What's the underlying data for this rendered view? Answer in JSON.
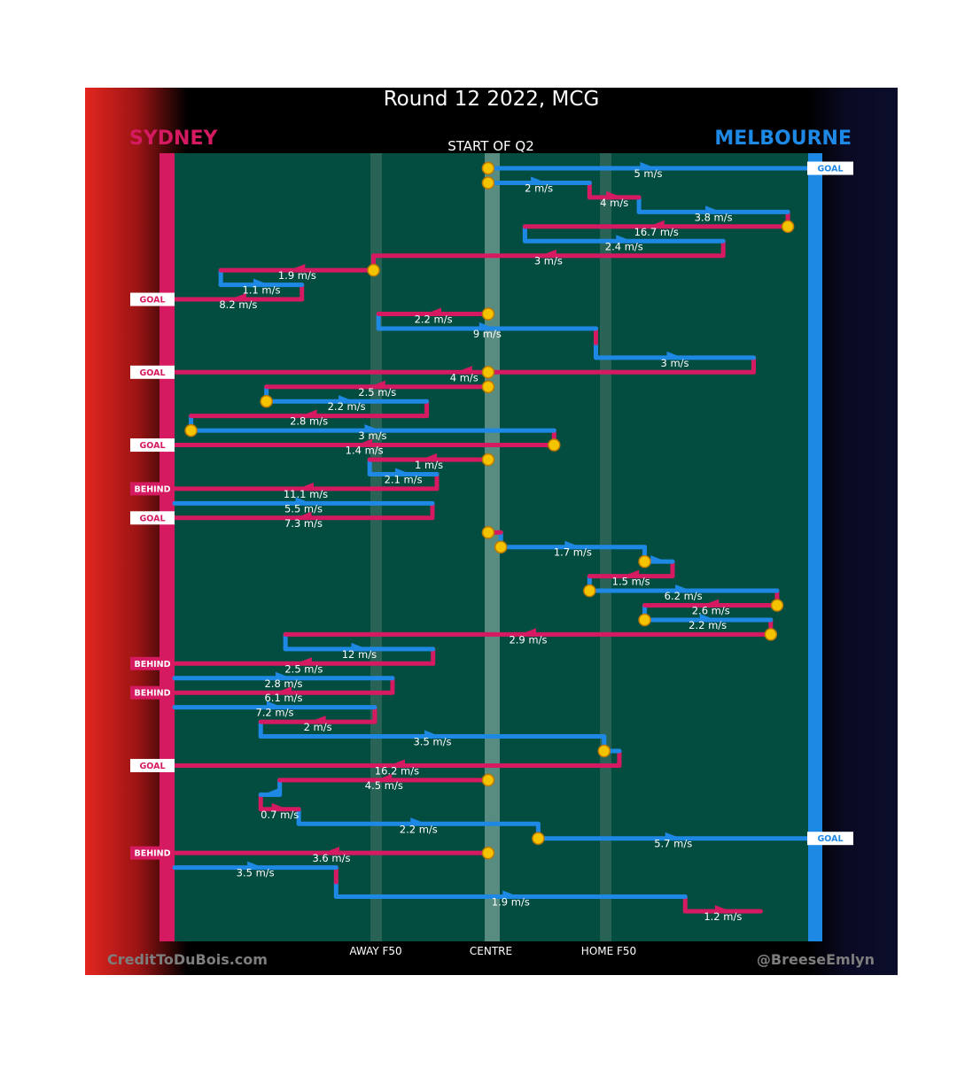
{
  "title": "Round 12 2022, MCG",
  "subtitle": "START OF Q2",
  "teams": {
    "left": "SYDNEY",
    "right": "MELBOURNE"
  },
  "footer": {
    "credit": "CreditToDuBois.com",
    "handle": "@BreeseEmlyn"
  },
  "colors": {
    "sydney": "#d61a61",
    "melbourne": "#1e88e5",
    "ground": "#034d40",
    "marker": "#f5c400"
  },
  "chart_data": {
    "type": "line",
    "xlabel": "",
    "ylabel": "",
    "x_markers": [
      {
        "label": "AWAY F50",
        "x": 50
      },
      {
        "label": "CENTRE",
        "x": 50
      },
      {
        "label": "HOME F50",
        "x": 50
      }
    ],
    "xlim": [
      0,
      100
    ],
    "note_units": "x values are percent of ground length from Sydney goal (0) to Melbourne goal (100)",
    "series": [
      {
        "name": "SYDNEY"
      },
      {
        "name": "MELBOURNE"
      }
    ],
    "segments": [
      {
        "team": "MELBOURNE",
        "from": 49.5,
        "to": 100,
        "y": 1,
        "speed": "5 m/s",
        "result": "GOAL"
      },
      {
        "team": "MELBOURNE",
        "from": 49.5,
        "to": 65.5,
        "y": 2,
        "speed": "2 m/s"
      },
      {
        "team": "SYDNEY",
        "from": 65.5,
        "to": 73.3,
        "y": 3,
        "speed": "4 m/s"
      },
      {
        "team": "MELBOURNE",
        "from": 73.3,
        "to": 96.8,
        "y": 4,
        "speed": "3.8 m/s"
      },
      {
        "team": "SYDNEY",
        "from": 96.8,
        "to": 55.3,
        "y": 5,
        "speed": "16.7 m/s"
      },
      {
        "team": "MELBOURNE",
        "from": 55.3,
        "to": 86.6,
        "y": 6,
        "speed": "2.4 m/s"
      },
      {
        "team": "SYDNEY",
        "from": 86.6,
        "to": 31.4,
        "y": 7,
        "speed": "3 m/s"
      },
      {
        "team": "SYDNEY",
        "from": 31.4,
        "to": 7.3,
        "y": 8,
        "speed": "1.9 m/s"
      },
      {
        "team": "MELBOURNE",
        "from": 7.3,
        "to": 20.1,
        "y": 9,
        "speed": "1.1 m/s"
      },
      {
        "team": "SYDNEY",
        "from": 20.1,
        "to": 0,
        "y": 10,
        "speed": "8.2 m/s",
        "result": "GOAL"
      },
      {
        "team": "SYDNEY",
        "from": 49.5,
        "to": 32.2,
        "y": 11,
        "speed": "2.2 m/s"
      },
      {
        "team": "MELBOURNE",
        "from": 32.2,
        "to": 66.5,
        "y": 12,
        "speed": "9 m/s"
      },
      {
        "team": "SYDNEY",
        "from": 66.5,
        "to": 66.5,
        "y": 13,
        "speed": ""
      },
      {
        "team": "MELBOURNE",
        "from": 66.5,
        "to": 91.4,
        "y": 14,
        "speed": "3 m/s"
      },
      {
        "team": "SYDNEY",
        "from": 91.4,
        "to": 0,
        "y": 15,
        "speed": "4 m/s",
        "result": "GOAL"
      },
      {
        "team": "SYDNEY",
        "from": 49.5,
        "to": 14.5,
        "y": 16,
        "speed": "2.5 m/s"
      },
      {
        "team": "MELBOURNE",
        "from": 14.5,
        "to": 39.8,
        "y": 17,
        "speed": "2.2 m/s"
      },
      {
        "team": "SYDNEY",
        "from": 39.8,
        "to": 2.6,
        "y": 18,
        "speed": "2.8 m/s"
      },
      {
        "team": "MELBOURNE",
        "from": 2.6,
        "to": 59.9,
        "y": 19,
        "speed": "3 m/s"
      },
      {
        "team": "SYDNEY",
        "from": 59.9,
        "to": 0,
        "y": 20,
        "speed": "1.4 m/s",
        "result": "GOAL"
      },
      {
        "team": "SYDNEY",
        "from": 49.5,
        "to": 30.8,
        "y": 21,
        "speed": "1 m/s"
      },
      {
        "team": "MELBOURNE",
        "from": 30.8,
        "to": 41.4,
        "y": 22,
        "speed": "2.1 m/s"
      },
      {
        "team": "SYDNEY",
        "from": 41.4,
        "to": 0,
        "y": 23,
        "speed": "11.1 m/s",
        "result": "BEHIND"
      },
      {
        "team": "MELBOURNE",
        "from": 0,
        "to": 40.7,
        "y": 24,
        "speed": "5.5 m/s"
      },
      {
        "team": "SYDNEY",
        "from": 40.7,
        "to": 0,
        "y": 25,
        "speed": "7.3 m/s",
        "result": "GOAL"
      },
      {
        "team": "SYDNEY",
        "from": 49.5,
        "to": 51.5,
        "y": 26,
        "speed": ""
      },
      {
        "team": "MELBOURNE",
        "from": 51.5,
        "to": 74.2,
        "y": 27,
        "speed": "1.7 m/s"
      },
      {
        "team": "MELBOURNE",
        "from": 74.2,
        "to": 78.6,
        "y": 28,
        "speed": ""
      },
      {
        "team": "SYDNEY",
        "from": 78.6,
        "to": 65.5,
        "y": 29,
        "speed": "1.5 m/s"
      },
      {
        "team": "MELBOURNE",
        "from": 65.5,
        "to": 95.1,
        "y": 30,
        "speed": "6.2 m/s"
      },
      {
        "team": "SYDNEY",
        "from": 95.1,
        "to": 74.2,
        "y": 31,
        "speed": "2.6 m/s"
      },
      {
        "team": "MELBOURNE",
        "from": 74.2,
        "to": 94.1,
        "y": 32,
        "speed": "2.2 m/s"
      },
      {
        "team": "SYDNEY",
        "from": 94.1,
        "to": 17.5,
        "y": 33,
        "speed": "2.9 m/s"
      },
      {
        "team": "MELBOURNE",
        "from": 17.5,
        "to": 40.8,
        "y": 34,
        "speed": "12 m/s"
      },
      {
        "team": "SYDNEY",
        "from": 40.8,
        "to": 0,
        "y": 35,
        "speed": "2.5 m/s",
        "result": "BEHIND"
      },
      {
        "team": "MELBOURNE",
        "from": 0,
        "to": 34.4,
        "y": 36,
        "speed": "2.8 m/s"
      },
      {
        "team": "SYDNEY",
        "from": 34.4,
        "to": 0,
        "y": 37,
        "speed": "6.1 m/s",
        "result": "BEHIND"
      },
      {
        "team": "MELBOURNE",
        "from": 0,
        "to": 31.6,
        "y": 38,
        "speed": "7.2 m/s"
      },
      {
        "team": "SYDNEY",
        "from": 31.6,
        "to": 13.6,
        "y": 39,
        "speed": "2 m/s"
      },
      {
        "team": "MELBOURNE",
        "from": 13.6,
        "to": 67.8,
        "y": 40,
        "speed": "3.5 m/s"
      },
      {
        "team": "MELBOURNE",
        "from": 67.8,
        "to": 70.2,
        "y": 41,
        "speed": ""
      },
      {
        "team": "SYDNEY",
        "from": 70.2,
        "to": 0,
        "y": 42,
        "speed": "16.2 m/s",
        "result": "GOAL"
      },
      {
        "team": "SYDNEY",
        "from": 49.5,
        "to": 16.6,
        "y": 43,
        "speed": "4.5 m/s"
      },
      {
        "team": "MELBOURNE",
        "from": 16.6,
        "to": 13.6,
        "y": 44,
        "speed": ""
      },
      {
        "team": "SYDNEY",
        "from": 13.6,
        "to": 19.6,
        "y": 45,
        "speed": "0.7 m/s"
      },
      {
        "team": "MELBOURNE",
        "from": 19.6,
        "to": 57.4,
        "y": 46,
        "speed": "2.2 m/s"
      },
      {
        "team": "MELBOURNE",
        "from": 57.4,
        "to": 100,
        "y": 47,
        "speed": "5.7 m/s",
        "result": "GOAL"
      },
      {
        "team": "SYDNEY",
        "from": 49.5,
        "to": 0,
        "y": 48,
        "speed": "3.6 m/s",
        "result": "BEHIND"
      },
      {
        "team": "MELBOURNE",
        "from": 0,
        "to": 25.5,
        "y": 49,
        "speed": "3.5 m/s"
      },
      {
        "team": "SYDNEY",
        "from": 25.5,
        "to": 25.5,
        "y": 50,
        "speed": ""
      },
      {
        "team": "MELBOURNE",
        "from": 25.5,
        "to": 80.6,
        "y": 51,
        "speed": "1.9 m/s"
      },
      {
        "team": "SYDNEY",
        "from": 80.6,
        "to": 92.5,
        "y": 52,
        "speed": "1.2 m/s"
      }
    ]
  }
}
